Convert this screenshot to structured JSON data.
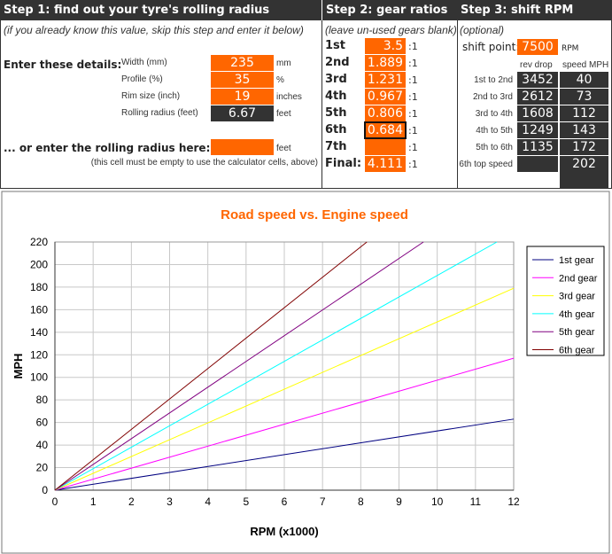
{
  "step1": {
    "title": "Step 1: find out your tyre's rolling radius",
    "subtitle": "(if you already know this value, skip this step and enter it below)",
    "enter_label": "Enter these details:",
    "rows": [
      {
        "label": "Width (mm)",
        "value": "235",
        "unit": "mm"
      },
      {
        "label": "Profile (%)",
        "value": "35",
        "unit": "%"
      },
      {
        "label": "Rim size (inch)",
        "value": "19",
        "unit": "inches"
      },
      {
        "label": "Rolling radius (feet)",
        "value": "6.67",
        "unit": "feet"
      }
    ],
    "or_label": "... or enter the rolling radius here:",
    "or_value": "",
    "or_unit": "feet",
    "note": "(this cell must be empty to use the calculator cells, above)"
  },
  "step2": {
    "title": "Step 2: gear ratios",
    "subtitle": "(leave un-used gears blank)",
    "suffix": ":1",
    "gears": [
      {
        "label": "1st",
        "value": "3.5"
      },
      {
        "label": "2nd",
        "value": "1.889"
      },
      {
        "label": "3rd",
        "value": "1.231"
      },
      {
        "label": "4th",
        "value": "0.967"
      },
      {
        "label": "5th",
        "value": "0.806"
      },
      {
        "label": "6th",
        "value": "0.684"
      },
      {
        "label": "7th",
        "value": ""
      },
      {
        "label": "Final:",
        "value": "4.111"
      }
    ]
  },
  "step3": {
    "title": "Step 3: shift RPM",
    "subtitle": "(optional)",
    "shift_label": "shift point:",
    "shift_value": "7500",
    "shift_unit": "RPM",
    "col1": "rev drop",
    "col2": "speed MPH",
    "rows": [
      {
        "label": "1st to 2nd",
        "drop": "3452",
        "speed": "40"
      },
      {
        "label": "2nd to 3rd",
        "drop": "2612",
        "speed": "73"
      },
      {
        "label": "3rd to 4th",
        "drop": "1608",
        "speed": "112"
      },
      {
        "label": "4th to 5th",
        "drop": "1249",
        "speed": "143"
      },
      {
        "label": "5th to 6th",
        "drop": "1135",
        "speed": "172"
      },
      {
        "label": "6th top speed",
        "drop": "",
        "speed": "202"
      }
    ]
  },
  "chart_data": {
    "type": "line",
    "title": "Road speed vs. Engine speed",
    "xlabel": "RPM (x1000)",
    "ylabel": "MPH",
    "xlim": [
      0,
      12
    ],
    "ylim": [
      0,
      220
    ],
    "xticks": [
      "0",
      "1",
      "2",
      "3",
      "4",
      "5",
      "6",
      "7",
      "8",
      "9",
      "10",
      "11",
      "12"
    ],
    "yticks": [
      "0",
      "20",
      "40",
      "60",
      "80",
      "100",
      "120",
      "140",
      "160",
      "180",
      "200",
      "220"
    ],
    "grid": true,
    "legend": "right",
    "series": [
      {
        "name": "1st gear",
        "color": "#000080",
        "points": [
          [
            0,
            0
          ],
          [
            12,
            63
          ]
        ]
      },
      {
        "name": "2nd gear",
        "color": "#ff00ff",
        "points": [
          [
            0,
            0
          ],
          [
            12,
            117
          ]
        ]
      },
      {
        "name": "3rd gear",
        "color": "#ffff00",
        "points": [
          [
            0,
            0
          ],
          [
            12,
            179
          ]
        ]
      },
      {
        "name": "4th gear",
        "color": "#00ffff",
        "points": [
          [
            0,
            0
          ],
          [
            11.56,
            220
          ]
        ]
      },
      {
        "name": "5th gear",
        "color": "#800080",
        "points": [
          [
            0,
            0
          ],
          [
            9.64,
            220
          ]
        ]
      },
      {
        "name": "6th gear",
        "color": "#800000",
        "points": [
          [
            0,
            0
          ],
          [
            8.16,
            220
          ]
        ]
      }
    ]
  }
}
